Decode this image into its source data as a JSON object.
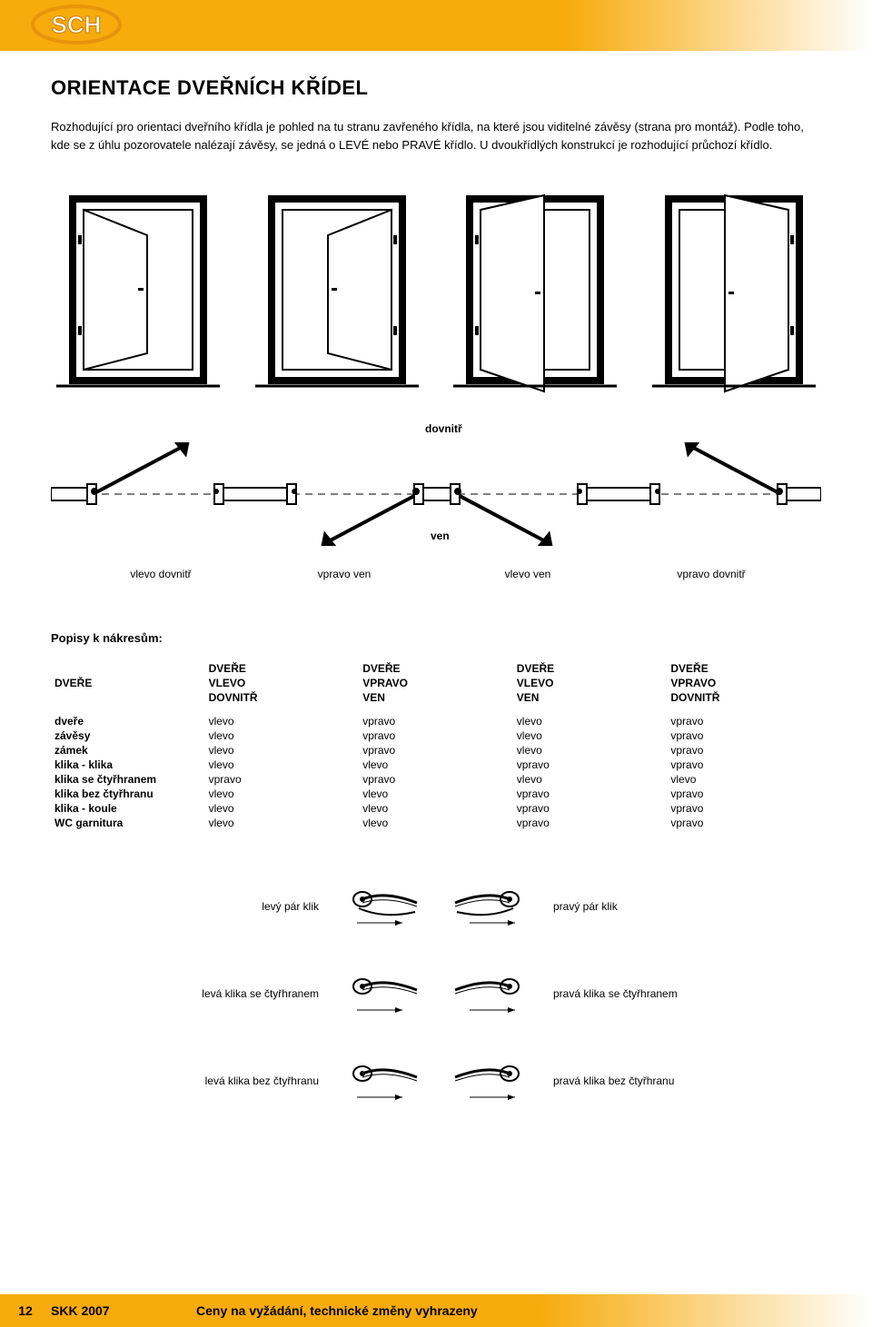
{
  "colors": {
    "accent": "#f7ab0d",
    "black": "#000000",
    "white": "#ffffff"
  },
  "logo": {
    "text": "SCH"
  },
  "title": "ORIENTACE DVEŘNÍCH KŘÍDEL",
  "intro": "Rozhodující pro orientaci dveřního křídla je pohled na tu stranu zavřeného křídla, na které jsou viditelné závěsy (strana pro montáž). Podle toho, kde se z úhlu pozorovatele nalézají závěsy, se jedná o LEVÉ nebo PRAVÉ křídlo. U dvoukřídlých konstrukcí je rozhodující průchozí křídlo.",
  "plan_mid": {
    "top": "dovnitř",
    "bottom": "ven"
  },
  "plan_labels": [
    "vlevo dovnitř",
    "vpravo ven",
    "vlevo ven",
    "vpravo dovnitř"
  ],
  "popisy_title": "Popisy k nákresům:",
  "table": {
    "header_row_label": "DVEŘE",
    "headers": [
      [
        "DVEŘE",
        "VLEVO",
        "DOVNITŘ"
      ],
      [
        "DVEŘE",
        "VPRAVO",
        "VEN"
      ],
      [
        "DVEŘE",
        "VLEVO",
        "VEN"
      ],
      [
        "DVEŘE",
        "VPRAVO",
        "DOVNITŘ"
      ]
    ],
    "rows": [
      {
        "label": "dveře",
        "cells": [
          "vlevo",
          "vpravo",
          "vlevo",
          "vpravo"
        ]
      },
      {
        "label": "závěsy",
        "cells": [
          "vlevo",
          "vpravo",
          "vlevo",
          "vpravo"
        ]
      },
      {
        "label": "zámek",
        "cells": [
          "vlevo",
          "vpravo",
          "vlevo",
          "vpravo"
        ]
      },
      {
        "label": "klika - klika",
        "cells": [
          "vlevo",
          "vlevo",
          "vpravo",
          "vpravo"
        ]
      },
      {
        "label": "klika se čtyřhranem",
        "cells": [
          "vpravo",
          "vpravo",
          "vlevo",
          "vlevo"
        ]
      },
      {
        "label": "klika bez čtyřhranu",
        "cells": [
          "vlevo",
          "vlevo",
          "vpravo",
          "vpravo"
        ]
      },
      {
        "label": "klika - koule",
        "cells": [
          "vlevo",
          "vlevo",
          "vpravo",
          "vpravo"
        ]
      },
      {
        "label": "WC garnitura",
        "cells": [
          "vlevo",
          "vlevo",
          "vpravo",
          "vpravo"
        ]
      }
    ]
  },
  "handles": [
    {
      "left": "levý pár klik",
      "right": "pravý pár klik",
      "type": "pair"
    },
    {
      "left": "levá klika se čtyřhranem",
      "right": "pravá klika se čtyřhranem",
      "type": "single"
    },
    {
      "left": "levá klika bez čtyřhranu",
      "right": "pravá klika bez čtyřhranu",
      "type": "single"
    }
  ],
  "footer": {
    "page": "12",
    "sku": "SKK 2007",
    "text": "Ceny na vyžádání, technické změny vyhrazeny"
  }
}
